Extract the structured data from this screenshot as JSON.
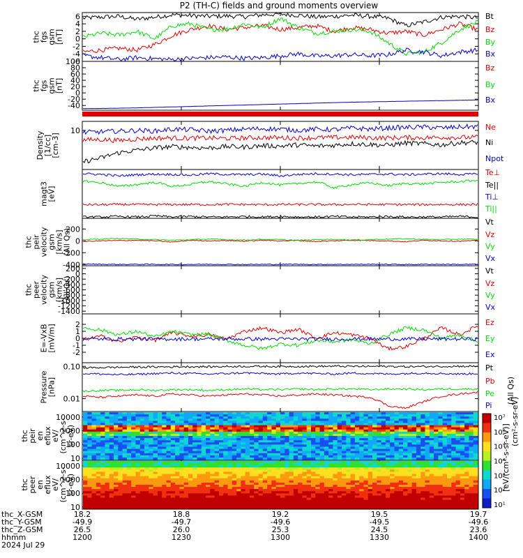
{
  "title": "P2 (TH-C) fields and ground moments overview",
  "colors": {
    "black": "#000000",
    "red": "#e00000",
    "green": "#00dd00",
    "blue": "#0000d0",
    "axis": "#000000"
  },
  "chart_data": [
    {
      "type": "line",
      "panel": "fgs",
      "ylabel": [
        "thc",
        "fgs",
        "gsm",
        "[nT]"
      ],
      "ylim": [
        -6,
        7
      ],
      "yticks": [
        "6",
        "4",
        "2",
        "0",
        "-2",
        "-4",
        "-6"
      ],
      "ytick_values": [
        6,
        4,
        2,
        0,
        -2,
        -4,
        -6
      ],
      "series": [
        {
          "name": "Bt",
          "color": "black",
          "values": [
            5.5,
            5.8,
            6.0,
            5.2,
            5.8,
            6.4,
            6.2,
            6.0,
            6.1,
            5.9,
            6.4,
            6.6,
            6.3,
            5.8,
            6.0,
            6.3,
            6.0,
            5.5,
            3.5,
            4.5,
            5.8,
            6.0,
            5.6
          ]
        },
        {
          "name": "Bz",
          "color": "red",
          "values": [
            -3.5,
            -3.0,
            -2.5,
            -3.0,
            -1.5,
            1.0,
            2.5,
            3.5,
            2.5,
            3.0,
            3.5,
            2.5,
            3.0,
            3.5,
            2.0,
            3.0,
            2.5,
            1.5,
            2.0,
            1.0,
            2.5,
            4.0,
            2.5
          ]
        },
        {
          "name": "By",
          "color": "green",
          "values": [
            0.5,
            1.5,
            1.0,
            2.0,
            0.0,
            3.5,
            4.0,
            2.5,
            2.5,
            4.0,
            3.0,
            5.5,
            3.0,
            1.5,
            2.0,
            2.5,
            2.0,
            -1.0,
            -4.0,
            -3.5,
            -1.0,
            2.5,
            4.5
          ]
        },
        {
          "name": "Bx",
          "color": "blue",
          "values": [
            -4.5,
            -5.0,
            -5.5,
            -5.0,
            -5.3,
            -5.5,
            -5.2,
            -5.0,
            -4.8,
            -5.2,
            -5.0,
            -4.5,
            -4.0,
            -4.6,
            -4.5,
            -4.2,
            -4.5,
            -4.2,
            -3.0,
            -3.5,
            -4.5,
            -3.5,
            -3.0
          ]
        }
      ]
    },
    {
      "type": "line",
      "panel": "fgs_dsl",
      "ylabel": [
        "thc",
        "fgs",
        "gsm",
        "[nT]"
      ],
      "ylim": [
        -55,
        100
      ],
      "yticks": [
        "100",
        "80",
        "60",
        "40",
        "20",
        "0",
        "-20",
        "-40"
      ],
      "ytick_values": [
        100,
        80,
        60,
        40,
        20,
        0,
        -20,
        -40
      ],
      "series": [
        {
          "name": "Bz",
          "color": "red",
          "values": []
        },
        {
          "name": "By",
          "color": "green",
          "values": []
        },
        {
          "name": "Bx",
          "color": "blue",
          "values": [
            -49.9,
            -49.5,
            -48.5,
            -47.5,
            -46.0,
            -44.5,
            -43.0,
            -41.5,
            -40.0,
            -38.5,
            -37.0,
            -35.5,
            -34.0,
            -32.5,
            -31.0,
            -29.5,
            -28.5,
            -27.5,
            -26.5,
            -25.5,
            -24.5,
            -23.5,
            -22.5
          ]
        }
      ]
    },
    {
      "type": "line",
      "panel": "density",
      "ylabel": [
        "Density",
        "[1/cc]",
        "[cm-3]"
      ],
      "ylim": [
        0.5,
        20
      ],
      "ylog": true,
      "yticks": [
        "10"
      ],
      "ytick_values": [
        10
      ],
      "series": [
        {
          "name": "Ne",
          "color": "red",
          "values": [
            4.8,
            5.0,
            4.6,
            5.2,
            5.5,
            5.6,
            5.5,
            5.6,
            5.4,
            5.6,
            5.8,
            5.7,
            5.6,
            5.7,
            5.8,
            5.9,
            5.7,
            5.6,
            5.8,
            5.7,
            5.9,
            5.8,
            5.9
          ]
        },
        {
          "name": "Ni",
          "color": "black",
          "values": [
            0.9,
            1.2,
            1.8,
            2.2,
            2.6,
            2.9,
            2.7,
            2.6,
            2.9,
            2.8,
            3.1,
            3.0,
            3.3,
            3.0,
            3.2,
            3.6,
            3.4,
            3.2,
            3.8,
            3.6,
            3.3,
            3.9,
            4.0
          ]
        },
        {
          "name": "Npot",
          "color": "blue",
          "values": [
            8.5,
            9.0,
            9.5,
            10.0,
            9.5,
            11.0,
            10.5,
            9.5,
            10.0,
            11.0,
            11.5,
            11.0,
            10.0,
            11.0,
            10.5,
            12.0,
            11.0,
            12.0,
            12.5,
            13.0,
            12.0,
            13.0,
            13.5
          ]
        }
      ]
    },
    {
      "type": "line",
      "panel": "temperature",
      "ylabel": [
        "magt3",
        "[eV]"
      ],
      "ylim": [
        10,
        10000.0
      ],
      "ylog": true,
      "yticks": [],
      "ytick_values": [],
      "series": [
        {
          "name": "Te⊥",
          "color": "red",
          "values": [
            70,
            68,
            72,
            70,
            69,
            71,
            70,
            70,
            72,
            71,
            69,
            70,
            71,
            70,
            69,
            72,
            70,
            71,
            70,
            70,
            71,
            70,
            72
          ]
        },
        {
          "name": "Te||",
          "color": "black",
          "values": [
            12,
            12,
            13,
            12,
            14,
            12,
            13,
            12,
            12,
            13,
            12,
            13,
            12,
            12,
            13,
            12,
            12,
            13,
            12,
            12,
            12,
            13,
            12
          ]
        },
        {
          "name": "Ti⊥",
          "color": "blue",
          "values": [
            5500,
            5000,
            4000,
            4800,
            5200,
            5000,
            4500,
            5500,
            5000,
            4800,
            5200,
            4000,
            5000,
            5500,
            5200,
            4800,
            5000,
            5300,
            4800,
            5200,
            5500,
            5000,
            5200
          ]
        },
        {
          "name": "Ti||",
          "color": "green",
          "values": [
            2000,
            1500,
            900,
            1200,
            1600,
            900,
            1200,
            1800,
            1300,
            900,
            1600,
            1100,
            1400,
            1700,
            700,
            1200,
            1500,
            1000,
            1400,
            1300,
            1600,
            1800,
            2200
          ]
        }
      ]
    },
    {
      "type": "line",
      "panel": "peir_velocity",
      "ylabel": [
        "thc",
        "peir",
        "velocity",
        "gsm",
        "[km/s]",
        "(All Qs)"
      ],
      "ylim": [
        -420,
        380
      ],
      "yticks": [
        "200",
        "0",
        "-200",
        "-400"
      ],
      "ytick_values": [
        200,
        0,
        -200,
        -400
      ],
      "series": [
        {
          "name": "Vt",
          "color": "black",
          "values": []
        },
        {
          "name": "Vz",
          "color": "red",
          "values": [
            -10,
            0,
            5,
            10,
            0,
            -20,
            10,
            0,
            5,
            -5,
            10,
            0,
            5,
            -10,
            0,
            10,
            5,
            0,
            -15,
            10,
            0,
            -5,
            5
          ]
        },
        {
          "name": "Vy",
          "color": "green",
          "values": [
            20,
            30,
            40,
            30,
            20,
            10,
            20,
            30,
            20,
            15,
            25,
            20,
            10,
            20,
            25,
            15,
            20,
            30,
            35,
            25,
            20,
            30,
            25
          ]
        },
        {
          "name": "Vx",
          "color": "blue",
          "values": [
            -390,
            -395,
            -398,
            -395,
            -396,
            -398,
            -397,
            -395,
            -396,
            -398,
            -397,
            -396,
            -395,
            -398,
            -397,
            -396,
            -395,
            -397,
            -398,
            -396,
            -395,
            -397,
            -396
          ]
        }
      ]
    },
    {
      "type": "line",
      "panel": "peer_velocity",
      "ylabel": [
        "thc",
        "peer",
        "velocity",
        "gsm",
        "[km/s]",
        "(All Qs)"
      ],
      "ylim": [
        -1500,
        300
      ],
      "yticks": [
        "200",
        "0",
        "-200",
        "-400",
        "-600",
        "-800",
        "-1000",
        "-1200",
        "-1400"
      ],
      "ytick_values": [
        200,
        0,
        -200,
        -400,
        -600,
        -800,
        -1000,
        -1200,
        -1400
      ],
      "series": [
        {
          "name": "Vt",
          "color": "black",
          "values": []
        },
        {
          "name": "Vz",
          "color": "red",
          "values": []
        },
        {
          "name": "Vy",
          "color": "green",
          "values": []
        },
        {
          "name": "Vx",
          "color": "blue",
          "values": []
        }
      ]
    },
    {
      "type": "line",
      "panel": "efield",
      "ylabel": [
        "E=-VxB",
        "[mV/m]"
      ],
      "ylim": [
        -3.5,
        3.5
      ],
      "yticks": [
        "2",
        "1",
        "0",
        "-1",
        "-2"
      ],
      "ytick_values": [
        2,
        1,
        0,
        -1,
        -2
      ],
      "series": [
        {
          "name": "Ez",
          "color": "red",
          "values": [
            -0.2,
            0.3,
            -0.5,
            0.2,
            -0.3,
            0.8,
            0.3,
            0.5,
            -0.1,
            1.0,
            1.5,
            0.8,
            1.3,
            0.0,
            0.8,
            0.5,
            0.0,
            -1.5,
            -1.2,
            0.0,
            1.5,
            0.5,
            1.8
          ]
        },
        {
          "name": "Ey",
          "color": "green",
          "values": [
            1.5,
            1.2,
            0.5,
            1.0,
            0.2,
            1.0,
            0.5,
            0.6,
            -0.3,
            -1.0,
            -1.5,
            -0.8,
            -1.0,
            -0.3,
            -0.5,
            -0.2,
            -0.8,
            0.5,
            1.5,
            1.2,
            0.0,
            0.5,
            -0.5
          ]
        },
        {
          "name": "Ex",
          "color": "blue",
          "values": [
            -0.1,
            -0.1,
            -0.1,
            -0.1,
            -0.1,
            -0.1,
            -0.1,
            -0.1,
            -0.1,
            -0.1,
            -0.1,
            -0.1,
            -0.1,
            -0.1,
            -0.1,
            -0.1,
            -0.1,
            -0.1,
            -0.1,
            -0.1,
            -0.1,
            -0.1,
            -0.1
          ]
        }
      ]
    },
    {
      "type": "line",
      "panel": "pressure",
      "ylabel": [
        "Pressure",
        "[nPa]"
      ],
      "ylim": [
        0.004,
        0.13
      ],
      "ylog": true,
      "yticks": [
        "0.10",
        "0.01"
      ],
      "ytick_values": [
        0.1,
        0.01
      ],
      "series": [
        {
          "name": "Pt",
          "color": "black",
          "values": [
            0.09,
            0.092,
            0.094,
            0.095,
            0.096,
            0.097,
            0.098,
            0.097,
            0.099,
            0.1,
            0.1,
            0.099,
            0.1,
            0.1,
            0.101,
            0.1,
            0.1,
            0.1,
            0.098,
            0.099,
            0.1,
            0.101,
            0.1
          ]
        },
        {
          "name": "Pb",
          "color": "red",
          "values": [
            0.012,
            0.011,
            0.012,
            0.013,
            0.012,
            0.014,
            0.013,
            0.012,
            0.013,
            0.014,
            0.013,
            0.012,
            0.013,
            0.014,
            0.013,
            0.012,
            0.011,
            0.006,
            0.005,
            0.008,
            0.012,
            0.014,
            0.016
          ]
        },
        {
          "name": "Pe",
          "color": "green",
          "values": [
            0.017,
            0.018,
            0.018,
            0.019,
            0.018,
            0.019,
            0.019,
            0.018,
            0.019,
            0.02,
            0.019,
            0.019,
            0.02,
            0.019,
            0.02,
            0.02,
            0.019,
            0.02,
            0.02,
            0.019,
            0.02,
            0.02,
            0.02
          ]
        },
        {
          "name": "Pi",
          "color": "blue",
          "values": [
            0.06,
            0.058,
            0.055,
            0.057,
            0.06,
            0.062,
            0.06,
            0.058,
            0.06,
            0.063,
            0.06,
            0.058,
            0.062,
            0.06,
            0.058,
            0.062,
            0.06,
            0.058,
            0.06,
            0.062,
            0.06,
            0.058,
            0.06
          ]
        }
      ],
      "right_note": "(All Qs)"
    },
    {
      "type": "heatmap",
      "panel": "peir_eflux",
      "ylabel": [
        "thc",
        "peir",
        "en",
        "eflux",
        "eV/",
        "(cm^2-s-",
        "sr-eV)"
      ],
      "ylim": [
        7,
        25000
      ],
      "ylog": true,
      "yticks": [
        "10000",
        "1000",
        "100",
        "10"
      ],
      "ytick_values": [
        10000,
        1000,
        100,
        10
      ]
    },
    {
      "type": "heatmap",
      "panel": "peer_eflux",
      "ylabel": [
        "thc",
        "peer",
        "en",
        "eflux",
        "eV/",
        "(cm^2-s-",
        "sr-eV)"
      ],
      "ylim": [
        7,
        25000
      ],
      "ylog": true,
      "yticks": [
        "10000",
        "1000",
        "100",
        "10"
      ],
      "ytick_values": [
        10000,
        1000,
        100,
        10
      ]
    }
  ],
  "colorbar": {
    "ticks": [
      "10⁷",
      "10⁶",
      "10⁵",
      "10⁴",
      "10³",
      "10²",
      "10¹"
    ],
    "label": "[eV/(cm²-s-sr-eV)]",
    "label2": "(cm²-s-sr-eV)"
  },
  "x_axis": {
    "row_labels": [
      "thc_X-GSM",
      "thc_Y-GSM",
      "thc_Z-GSM",
      "hhmm",
      "2024 Jul 29"
    ],
    "columns": [
      {
        "x": "18.2",
        "y": "-49.9",
        "z": "26.5",
        "hhmm": "1200"
      },
      {
        "x": "18.8",
        "y": "-49.7",
        "z": "26.0",
        "hhmm": "1230"
      },
      {
        "x": "19.2",
        "y": "-49.6",
        "z": "25.3",
        "hhmm": "1300"
      },
      {
        "x": "19.5",
        "y": "-49.5",
        "z": "24.5",
        "hhmm": "1330"
      },
      {
        "x": "19.7",
        "y": "-49.6",
        "z": "23.6",
        "hhmm": "1400"
      }
    ]
  }
}
